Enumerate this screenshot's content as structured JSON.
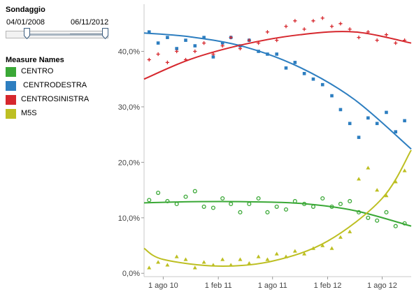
{
  "filter": {
    "title": "Sondaggio",
    "start_date": "04/01/2008",
    "end_date": "06/11/2012"
  },
  "legend": {
    "title": "Measure Names",
    "items": [
      {
        "label": "CENTRO",
        "color": "#3aa836"
      },
      {
        "label": " CENTRODESTRA",
        "color": "#2d7ec0"
      },
      {
        "label": "CENTROSINISTRA",
        "color": "#d6272d"
      },
      {
        "label": "M5S",
        "color": "#bdbf22"
      }
    ]
  },
  "chart_data": {
    "type": "scatter",
    "x_ticks": [
      "1 ago 10",
      "1 feb 11",
      "1 ago 11",
      "1 feb 12",
      "1 ago 12"
    ],
    "y_ticks": [
      "0,0%",
      "10,0%",
      "20,0%",
      "30,0%",
      "40,0%"
    ],
    "x_range": [
      "2010-05-29",
      "2012-11-06"
    ],
    "y_range": [
      -0.6,
      48.5
    ],
    "x_ticks_dates": [
      "2010-08-01",
      "2011-02-01",
      "2011-08-01",
      "2012-02-01",
      "2012-08-01"
    ],
    "y_tick_values": [
      0,
      10,
      20,
      30,
      40
    ],
    "grid": false,
    "series": [
      {
        "name": "CENTRO",
        "color": "#3aa836",
        "marker": "circle",
        "points": [
          [
            "2010-06-15",
            13.2
          ],
          [
            "2010-07-15",
            14.5
          ],
          [
            "2010-08-15",
            13.0
          ],
          [
            "2010-09-15",
            12.5
          ],
          [
            "2010-10-15",
            13.8
          ],
          [
            "2010-11-15",
            14.8
          ],
          [
            "2010-12-15",
            12.0
          ],
          [
            "2011-01-15",
            11.8
          ],
          [
            "2011-02-15",
            13.5
          ],
          [
            "2011-03-15",
            12.5
          ],
          [
            "2011-04-15",
            11.0
          ],
          [
            "2011-05-15",
            12.5
          ],
          [
            "2011-06-15",
            13.5
          ],
          [
            "2011-07-15",
            11.0
          ],
          [
            "2011-08-15",
            12.0
          ],
          [
            "2011-09-15",
            11.5
          ],
          [
            "2011-10-15",
            13.0
          ],
          [
            "2011-11-15",
            12.5
          ],
          [
            "2011-12-15",
            12.0
          ],
          [
            "2012-01-15",
            13.5
          ],
          [
            "2012-02-15",
            12.0
          ],
          [
            "2012-03-15",
            12.5
          ],
          [
            "2012-04-15",
            13.0
          ],
          [
            "2012-05-15",
            11.0
          ],
          [
            "2012-06-15",
            10.0
          ],
          [
            "2012-07-15",
            9.5
          ],
          [
            "2012-08-15",
            11.0
          ],
          [
            "2012-09-15",
            8.5
          ],
          [
            "2012-10-15",
            9.0
          ]
        ],
        "trend": [
          [
            "2010-05-29",
            12.7
          ],
          [
            "2010-11-01",
            12.9
          ],
          [
            "2011-05-01",
            12.9
          ],
          [
            "2011-11-01",
            12.6
          ],
          [
            "2012-05-01",
            11.3
          ],
          [
            "2012-11-06",
            8.5
          ]
        ]
      },
      {
        "name": " CENTRODESTRA",
        "color": "#2d7ec0",
        "marker": "square",
        "points": [
          [
            "2010-06-15",
            43.5
          ],
          [
            "2010-07-15",
            41.5
          ],
          [
            "2010-08-15",
            42.5
          ],
          [
            "2010-09-15",
            40.5
          ],
          [
            "2010-10-15",
            42.0
          ],
          [
            "2010-11-15",
            41.0
          ],
          [
            "2010-12-15",
            42.5
          ],
          [
            "2011-01-15",
            39.0
          ],
          [
            "2011-02-15",
            41.5
          ],
          [
            "2011-03-15",
            42.5
          ],
          [
            "2011-04-15",
            41.0
          ],
          [
            "2011-05-15",
            42.0
          ],
          [
            "2011-06-15",
            40.0
          ],
          [
            "2011-07-15",
            39.5
          ],
          [
            "2011-08-15",
            39.5
          ],
          [
            "2011-09-15",
            37.0
          ],
          [
            "2011-10-15",
            38.0
          ],
          [
            "2011-11-15",
            36.0
          ],
          [
            "2011-12-15",
            35.0
          ],
          [
            "2012-01-15",
            34.0
          ],
          [
            "2012-02-15",
            32.0
          ],
          [
            "2012-03-15",
            29.5
          ],
          [
            "2012-04-15",
            27.0
          ],
          [
            "2012-05-15",
            24.5
          ],
          [
            "2012-06-15",
            28.0
          ],
          [
            "2012-07-15",
            27.0
          ],
          [
            "2012-08-15",
            29.0
          ],
          [
            "2012-09-15",
            25.5
          ],
          [
            "2012-10-15",
            27.5
          ]
        ],
        "trend": [
          [
            "2010-05-29",
            43.3
          ],
          [
            "2010-11-01",
            42.6
          ],
          [
            "2011-05-01",
            40.8
          ],
          [
            "2011-11-01",
            37.1
          ],
          [
            "2012-05-01",
            31.3
          ],
          [
            "2012-11-06",
            22.4
          ]
        ]
      },
      {
        "name": "CENTROSINISTRA",
        "color": "#d6272d",
        "marker": "plus",
        "points": [
          [
            "2010-06-15",
            38.5
          ],
          [
            "2010-07-15",
            39.5
          ],
          [
            "2010-08-15",
            38.0
          ],
          [
            "2010-09-15",
            40.0
          ],
          [
            "2010-10-15",
            38.5
          ],
          [
            "2010-11-15",
            40.0
          ],
          [
            "2010-12-15",
            41.5
          ],
          [
            "2011-01-15",
            39.5
          ],
          [
            "2011-02-15",
            41.0
          ],
          [
            "2011-03-15",
            42.5
          ],
          [
            "2011-04-15",
            40.5
          ],
          [
            "2011-05-15",
            42.0
          ],
          [
            "2011-06-15",
            41.5
          ],
          [
            "2011-07-15",
            43.5
          ],
          [
            "2011-08-15",
            42.0
          ],
          [
            "2011-09-15",
            44.5
          ],
          [
            "2011-10-15",
            45.5
          ],
          [
            "2011-11-15",
            44.0
          ],
          [
            "2011-12-15",
            45.5
          ],
          [
            "2012-01-15",
            46.0
          ],
          [
            "2012-02-15",
            44.5
          ],
          [
            "2012-03-15",
            45.0
          ],
          [
            "2012-04-15",
            44.0
          ],
          [
            "2012-05-15",
            42.5
          ],
          [
            "2012-06-15",
            43.5
          ],
          [
            "2012-07-15",
            42.0
          ],
          [
            "2012-08-15",
            43.0
          ],
          [
            "2012-09-15",
            41.5
          ],
          [
            "2012-10-15",
            42.0
          ]
        ],
        "trend": [
          [
            "2010-05-29",
            35.0
          ],
          [
            "2010-11-01",
            38.6
          ],
          [
            "2011-05-01",
            41.3
          ],
          [
            "2011-11-01",
            43.0
          ],
          [
            "2012-05-01",
            43.5
          ],
          [
            "2012-11-06",
            41.5
          ]
        ]
      },
      {
        "name": "M5S",
        "color": "#bdbf22",
        "marker": "triangle",
        "points": [
          [
            "2010-06-15",
            1.0
          ],
          [
            "2010-07-15",
            2.0
          ],
          [
            "2010-08-15",
            1.5
          ],
          [
            "2010-09-15",
            3.0
          ],
          [
            "2010-10-15",
            2.5
          ],
          [
            "2010-11-15",
            1.0
          ],
          [
            "2010-12-15",
            2.0
          ],
          [
            "2011-01-15",
            1.5
          ],
          [
            "2011-02-15",
            2.5
          ],
          [
            "2011-03-15",
            1.5
          ],
          [
            "2011-04-15",
            2.5
          ],
          [
            "2011-05-15",
            1.8
          ],
          [
            "2011-06-15",
            3.0
          ],
          [
            "2011-07-15",
            2.5
          ],
          [
            "2011-08-15",
            3.5
          ],
          [
            "2011-09-15",
            3.0
          ],
          [
            "2011-10-15",
            4.0
          ],
          [
            "2011-11-15",
            3.5
          ],
          [
            "2011-12-15",
            4.5
          ],
          [
            "2012-01-15",
            5.0
          ],
          [
            "2012-02-15",
            4.5
          ],
          [
            "2012-03-15",
            6.5
          ],
          [
            "2012-04-15",
            7.5
          ],
          [
            "2012-05-15",
            17.0
          ],
          [
            "2012-06-15",
            19.0
          ],
          [
            "2012-07-15",
            15.0
          ],
          [
            "2012-08-15",
            14.0
          ],
          [
            "2012-09-15",
            16.5
          ],
          [
            "2012-10-15",
            18.5
          ]
        ],
        "trend": [
          [
            "2010-05-29",
            4.5
          ],
          [
            "2010-08-01",
            2.5
          ],
          [
            "2011-02-01",
            1.3
          ],
          [
            "2011-08-01",
            2.2
          ],
          [
            "2012-02-01",
            5.8
          ],
          [
            "2012-08-01",
            13.5
          ],
          [
            "2012-11-06",
            22.2
          ]
        ]
      }
    ]
  }
}
